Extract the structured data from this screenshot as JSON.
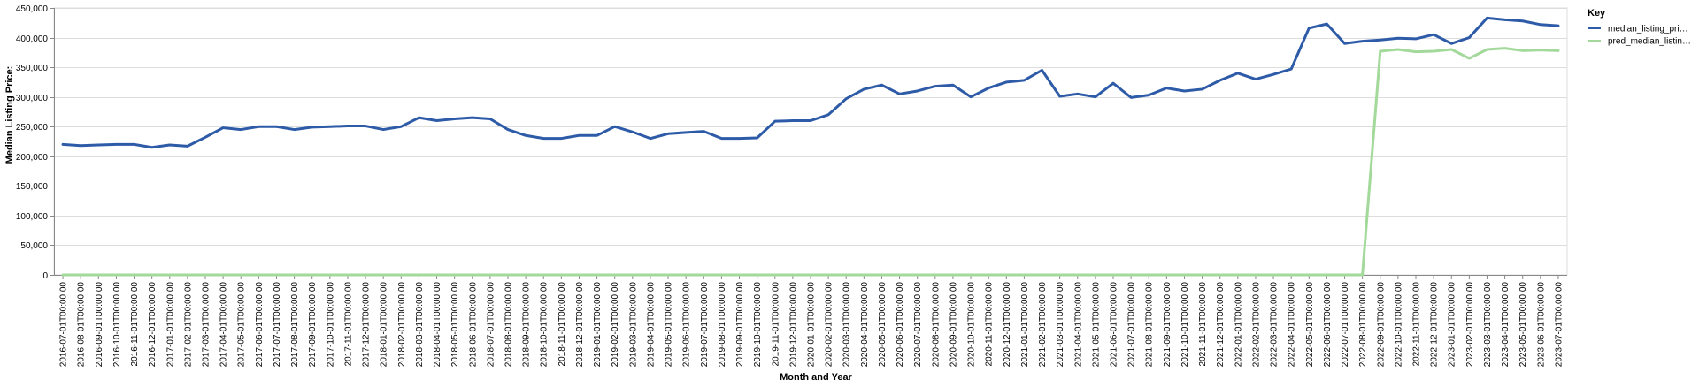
{
  "chart_data": {
    "type": "line",
    "xlabel": "Month and Year",
    "ylabel": "Median Listing Price:",
    "ylim": [
      0,
      450000
    ],
    "yticks": [
      "0",
      "50,000",
      "100,000",
      "150,000",
      "200,000",
      "250,000",
      "300,000",
      "350,000",
      "400,000",
      "450,000"
    ],
    "ytick_values": [
      0,
      50000,
      100000,
      150000,
      200000,
      250000,
      300000,
      350000,
      400000,
      450000
    ],
    "grid": true,
    "legend_position": "right",
    "legend_title": "Key",
    "categories": [
      "2016-07-01T00:00:00",
      "2016-08-01T00:00:00",
      "2016-09-01T00:00:00",
      "2016-10-01T00:00:00",
      "2016-11-01T00:00:00",
      "2016-12-01T00:00:00",
      "2017-01-01T00:00:00",
      "2017-02-01T00:00:00",
      "2017-03-01T00:00:00",
      "2017-04-01T00:00:00",
      "2017-05-01T00:00:00",
      "2017-06-01T00:00:00",
      "2017-07-01T00:00:00",
      "2017-08-01T00:00:00",
      "2017-09-01T00:00:00",
      "2017-10-01T00:00:00",
      "2017-11-01T00:00:00",
      "2017-12-01T00:00:00",
      "2018-01-01T00:00:00",
      "2018-02-01T00:00:00",
      "2018-03-01T00:00:00",
      "2018-04-01T00:00:00",
      "2018-05-01T00:00:00",
      "2018-06-01T00:00:00",
      "2018-07-01T00:00:00",
      "2018-08-01T00:00:00",
      "2018-09-01T00:00:00",
      "2018-10-01T00:00:00",
      "2018-11-01T00:00:00",
      "2018-12-01T00:00:00",
      "2019-01-01T00:00:00",
      "2019-02-01T00:00:00",
      "2019-03-01T00:00:00",
      "2019-04-01T00:00:00",
      "2019-05-01T00:00:00",
      "2019-06-01T00:00:00",
      "2019-07-01T00:00:00",
      "2019-08-01T00:00:00",
      "2019-09-01T00:00:00",
      "2019-10-01T00:00:00",
      "2019-11-01T00:00:00",
      "2019-12-01T00:00:00",
      "2020-01-01T00:00:00",
      "2020-02-01T00:00:00",
      "2020-03-01T00:00:00",
      "2020-04-01T00:00:00",
      "2020-05-01T00:00:00",
      "2020-06-01T00:00:00",
      "2020-07-01T00:00:00",
      "2020-08-01T00:00:00",
      "2020-09-01T00:00:00",
      "2020-10-01T00:00:00",
      "2020-11-01T00:00:00",
      "2020-12-01T00:00:00",
      "2021-01-01T00:00:00",
      "2021-02-01T00:00:00",
      "2021-03-01T00:00:00",
      "2021-04-01T00:00:00",
      "2021-05-01T00:00:00",
      "2021-06-01T00:00:00",
      "2021-07-01T00:00:00",
      "2021-08-01T00:00:00",
      "2021-09-01T00:00:00",
      "2021-10-01T00:00:00",
      "2021-11-01T00:00:00",
      "2021-12-01T00:00:00",
      "2022-01-01T00:00:00",
      "2022-02-01T00:00:00",
      "2022-03-01T00:00:00",
      "2022-04-01T00:00:00",
      "2022-05-01T00:00:00",
      "2022-06-01T00:00:00",
      "2022-07-01T00:00:00",
      "2022-08-01T00:00:00",
      "2022-09-01T00:00:00",
      "2022-10-01T00:00:00",
      "2022-11-01T00:00:00",
      "2022-12-01T00:00:00",
      "2023-01-01T00:00:00",
      "2023-02-01T00:00:00",
      "2023-03-01T00:00:00",
      "2023-04-01T00:00:00",
      "2023-05-01T00:00:00",
      "2023-06-01T00:00:00",
      "2023-07-01T00:00:00"
    ],
    "series": [
      {
        "name": "median_listing_pri…",
        "color": "#2e5ba8",
        "values": [
          220000,
          218000,
          219000,
          220000,
          220000,
          215000,
          219000,
          217000,
          232000,
          248000,
          245000,
          250000,
          250000,
          245000,
          249000,
          250000,
          251000,
          251000,
          245000,
          250000,
          265000,
          260000,
          263000,
          265000,
          263000,
          245000,
          235000,
          230000,
          230000,
          235000,
          235000,
          250000,
          241000,
          230000,
          238000,
          240000,
          242000,
          230000,
          230000,
          231000,
          259000,
          260000,
          260000,
          270000,
          297000,
          313000,
          320000,
          305000,
          310000,
          318000,
          320000,
          300000,
          315000,
          325000,
          328000,
          345000,
          301000,
          305000,
          300000,
          323000,
          299000,
          303000,
          315000,
          310000,
          313000,
          328000,
          340000,
          330000,
          338000,
          347000,
          416000,
          423000,
          390000,
          394000,
          396000,
          399000,
          398000,
          405000,
          390000,
          400000,
          433000,
          430000,
          428000,
          422000,
          420000
        ]
      },
      {
        "name": "pred_median_listin…",
        "color": "#a3d99a",
        "values": [
          0,
          0,
          0,
          0,
          0,
          0,
          0,
          0,
          0,
          0,
          0,
          0,
          0,
          0,
          0,
          0,
          0,
          0,
          0,
          0,
          0,
          0,
          0,
          0,
          0,
          0,
          0,
          0,
          0,
          0,
          0,
          0,
          0,
          0,
          0,
          0,
          0,
          0,
          0,
          0,
          0,
          0,
          0,
          0,
          0,
          0,
          0,
          0,
          0,
          0,
          0,
          0,
          0,
          0,
          0,
          0,
          0,
          0,
          0,
          0,
          0,
          0,
          0,
          0,
          0,
          0,
          0,
          0,
          0,
          0,
          0,
          0,
          0,
          0,
          377000,
          380000,
          376000,
          377000,
          380000,
          365000,
          380000,
          382000,
          378000,
          379000,
          378000
        ]
      }
    ]
  }
}
